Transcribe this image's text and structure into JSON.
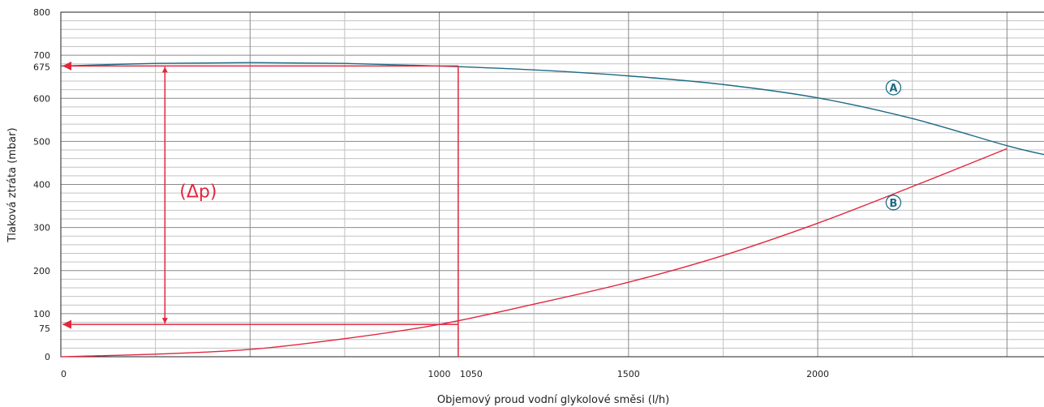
{
  "chart_data": {
    "type": "line",
    "xlabel": "Objemový proud vodní glykolové směsi (l/h)",
    "ylabel": "Tlaková ztráta (mbar)",
    "xlim": [
      0,
      2600
    ],
    "ylim": [
      0,
      800
    ],
    "x_ticks": [
      0,
      1000,
      1500,
      2000
    ],
    "y_ticks": [
      0,
      100,
      200,
      300,
      400,
      500,
      600,
      700,
      800
    ],
    "x_highlight_ticks": [
      1050
    ],
    "y_highlight_ticks": [
      675,
      75
    ],
    "x_minor_step": 250,
    "y_minor_step": 20,
    "grid": true,
    "series": [
      {
        "name": "A",
        "color": "#1d6a86",
        "x": [
          0,
          250,
          500,
          750,
          1000,
          1250,
          1500,
          1750,
          2000,
          2250,
          2500,
          2600
        ],
        "y": [
          675,
          681,
          683,
          681,
          675,
          666,
          652,
          632,
          601,
          553,
          490,
          469
        ]
      },
      {
        "name": "B",
        "color": "#e2263e",
        "x": [
          0,
          250,
          500,
          750,
          1000,
          1250,
          1500,
          1750,
          2000,
          2250,
          2500
        ],
        "y": [
          0,
          6,
          17,
          42,
          75,
          122,
          173,
          235,
          310,
          395,
          483
        ]
      }
    ],
    "annotations": {
      "dp_label": "(Δp)",
      "operating_flow": 1050,
      "pressure_high": 675,
      "pressure_low": 75,
      "color": "#e2263e"
    }
  }
}
